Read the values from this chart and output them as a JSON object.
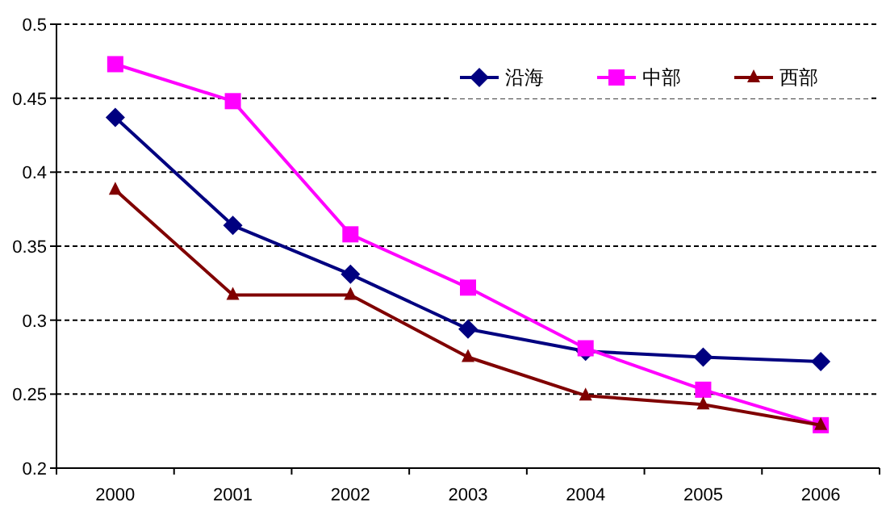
{
  "chart_data": {
    "type": "line",
    "categories": [
      "2000",
      "2001",
      "2002",
      "2003",
      "2004",
      "2005",
      "2006"
    ],
    "series": [
      {
        "name": "沿海",
        "color": "#000080",
        "marker": "diamond",
        "values": [
          0.437,
          0.364,
          0.331,
          0.294,
          0.279,
          0.275,
          0.272
        ]
      },
      {
        "name": "中部",
        "color": "#ff00ff",
        "marker": "square",
        "values": [
          0.473,
          0.448,
          0.358,
          0.322,
          0.281,
          0.253,
          0.229
        ]
      },
      {
        "name": "西部",
        "color": "#800000",
        "marker": "triangle",
        "values": [
          0.388,
          0.317,
          0.317,
          0.275,
          0.249,
          0.243,
          0.229
        ]
      }
    ],
    "ylim": [
      0.2,
      0.5
    ],
    "yticks": [
      0.2,
      0.25,
      0.3,
      0.35,
      0.4,
      0.45,
      0.5
    ],
    "grid": "y",
    "legend": "top right"
  }
}
